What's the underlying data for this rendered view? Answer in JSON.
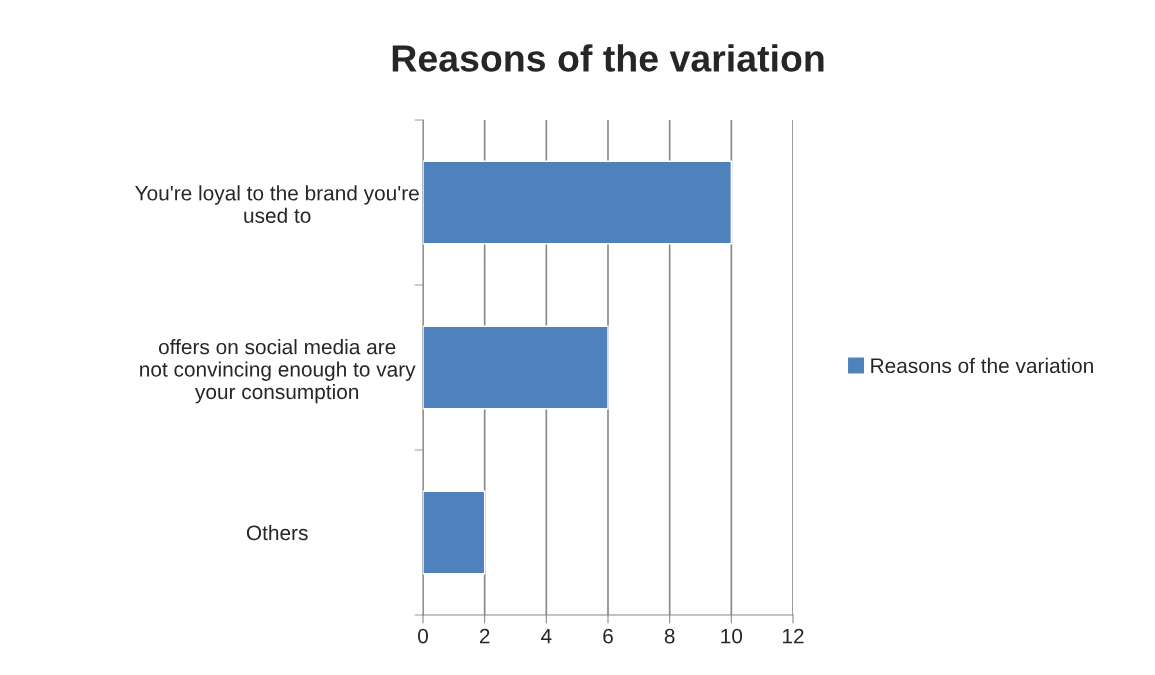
{
  "chart_data": {
    "type": "bar",
    "orientation": "horizontal",
    "title": "Reasons of the variation",
    "categories": [
      "You're loyal to the brand you're\nused to",
      "offers on social media are\nnot convincing enough to vary\nyour consumption",
      "Others"
    ],
    "series": [
      {
        "name": "Reasons of the variation",
        "color": "#4f81bd",
        "values": [
          10,
          6,
          2
        ]
      }
    ],
    "xlim": [
      0,
      12
    ],
    "xticks": [
      0,
      2,
      4,
      6,
      8,
      10,
      12
    ],
    "grid": "x",
    "legend": "right"
  }
}
